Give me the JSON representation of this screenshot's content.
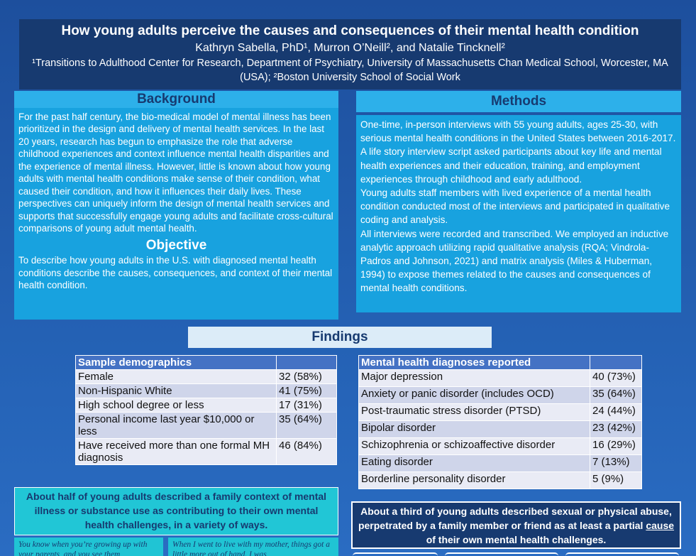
{
  "header": {
    "title": "How young adults perceive the causes and consequences of their mental health condition",
    "authors": "Kathryn Sabella, PhD¹, Murron O’Neill², and Natalie Tincknell²",
    "affiliation": "¹Transitions to Adulthood Center for Research, Department of Psychiatry, University of Massachusetts Chan Medical School, Worcester, MA (USA); ²Boston University School of Social Work"
  },
  "background": {
    "heading": "Background",
    "text": "For the past half century, the bio-medical model of mental illness has been prioritized in the design and delivery of mental health services. In the last 20 years, research has begun to emphasize the role that adverse childhood experiences and context influence mental health disparities and the experience of mental illness. However, little is known about how young adults with mental health conditions make sense of their condition, what caused their condition, and how it influences their daily lives. These perspectives can uniquely inform the design of mental health services and supports that successfully engage young adults and facilitate cross-cultural comparisons of young adult mental health."
  },
  "objective": {
    "heading": "Objective",
    "text": "To describe how young adults in the U.S. with diagnosed mental health conditions describe the causes, consequences, and context of their mental health condition."
  },
  "methods": {
    "heading": "Methods",
    "paragraphs": [
      "One-time, in-person interviews with 55 young adults, ages 25-30, with serious mental health conditions in the United States between 2016-2017.",
      "A life story interview script asked participants about key life and mental health experiences and their education, training, and employment experiences through childhood and early adulthood.",
      "Young adults staff members with lived experience of a mental health condition conducted most of the interviews and participated in qualitative coding and analysis.",
      "All interviews were recorded and transcribed. We employed an inductive analytic approach utilizing rapid qualitative analysis (RQA; Vindrola-Padros and Johnson, 2021) and matrix analysis (Miles & Huberman, 1994) to expose themes related to the causes and consequences of mental health conditions."
    ]
  },
  "findings": {
    "heading": "Findings",
    "demographics": {
      "header": "Sample demographics",
      "rows": [
        [
          "Female",
          "32 (58%)"
        ],
        [
          "Non-Hispanic White",
          "41 (75%)"
        ],
        [
          "High school degree or less",
          "17 (31%)"
        ],
        [
          "Personal income last year $10,000 or less",
          "35 (64%)"
        ],
        [
          "Have received more than one formal MH diagnosis",
          "46 (84%)"
        ]
      ]
    },
    "diagnoses": {
      "header": "Mental health diagnoses reported",
      "rows": [
        [
          "Major depression",
          "40 (73%)"
        ],
        [
          "Anxiety or panic disorder (includes OCD)",
          "35 (64%)"
        ],
        [
          "Post-traumatic stress disorder (PTSD)",
          "24 (44%)"
        ],
        [
          "Bipolar disorder",
          "23 (42%)"
        ],
        [
          "Schizophrenia or schizoaffective disorder",
          "16 (29%)"
        ],
        [
          "Eating disorder",
          "7 (13%)"
        ],
        [
          "Borderline personality disorder",
          "5 (9%)"
        ]
      ]
    },
    "family_callout": "About half of young adults described a family context of mental illness or substance use as contributing to their own mental health challenges, in a variety of ways.",
    "quotes": [
      "You know when you’re growing up with your parents, and you see them",
      "When I went to live with my mother, things got a little more out of hand. I was"
    ],
    "abuse_callout": {
      "before": "About a third of young adults described sexual or physical abuse, perpetrated by a family member or friend as at least a partial ",
      "underlined": "cause",
      "after": " of their own mental health challenges."
    }
  }
}
